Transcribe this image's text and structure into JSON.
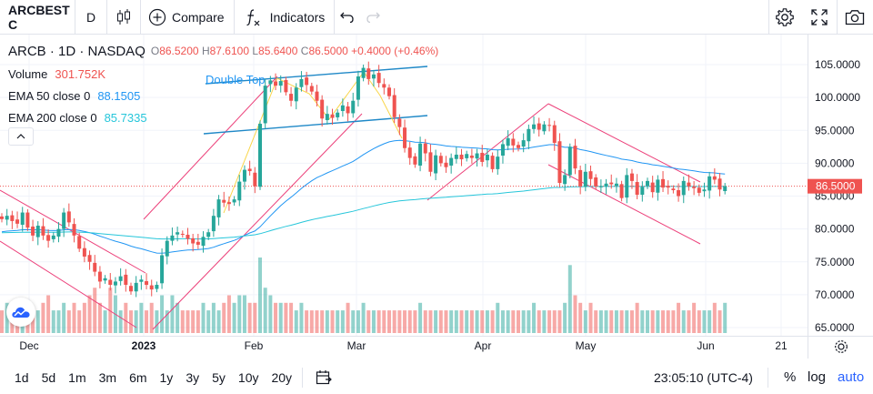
{
  "toolbar": {
    "symbol": "ARCBEST C",
    "interval": "D",
    "compare_label": "Compare",
    "indicators_label": "Indicators",
    "icons": [
      "candles-icon",
      "compare-plus-icon",
      "indicators-fx-icon",
      "undo-icon",
      "redo-icon",
      "settings-gear-icon",
      "fullscreen-icon",
      "camera-icon"
    ]
  },
  "legend": {
    "title": "ARCB · 1D · NASDAQ",
    "open_label": "O",
    "open": "86.5200",
    "high_label": "H",
    "high": "87.6100",
    "low_label": "L",
    "low": "85.6400",
    "close_label": "C",
    "close": "86.5000",
    "change": "+0.4000 (+0.46%)",
    "volume_label": "Volume",
    "volume": "301.752K",
    "ema50_label": "EMA 50 close 0",
    "ema50": "88.1505",
    "ema200_label": "EMA 200 close 0",
    "ema200": "85.7335",
    "colors": {
      "down": "#ef5350",
      "up": "#26a69a",
      "ema50": "#2196f3",
      "ema200": "#26c6da"
    }
  },
  "chart_data": {
    "type": "candlestick",
    "symbol": "ARCB",
    "interval": "1D",
    "exchange": "NASDAQ",
    "x_ticks": [
      "Dec",
      "2023",
      "Feb",
      "Mar",
      "Apr",
      "May",
      "Jun",
      "21"
    ],
    "y_ticks": [
      "105.0000",
      "100.0000",
      "95.0000",
      "90.0000",
      "85.0000",
      "80.0000",
      "75.0000",
      "70.0000",
      "65.0000"
    ],
    "ylim": [
      63.5,
      108
    ],
    "last_price": "86.5000",
    "annotation": "Double Top",
    "closes": [
      81.5,
      82,
      81.2,
      80.8,
      82.5,
      80.2,
      79,
      80.5,
      79,
      78.2,
      79,
      80,
      82.5,
      81,
      79,
      77,
      75.8,
      75,
      73.5,
      72,
      72.5,
      71.5,
      72,
      72.8,
      71.5,
      70.5,
      71.8,
      72.3,
      71.5,
      70.8,
      71.5,
      76,
      78.2,
      79,
      79.5,
      79.2,
      78.5,
      77.8,
      77.6,
      78.8,
      79.5,
      82,
      84.5,
      84,
      83.8,
      84.5,
      87.2,
      89,
      88.8,
      86.5,
      96,
      101.8,
      102.6,
      101.8,
      102.5,
      100.8,
      99.5,
      101.5,
      102.8,
      101.9,
      100.9,
      99.5,
      96.8,
      97.5,
      96.9,
      97.7,
      98.8,
      97.6,
      99.5,
      103.2,
      104.5,
      102.8,
      103.5,
      102.2,
      101.5,
      100.2,
      97,
      95.5,
      92.3,
      90.8,
      89.8,
      93,
      91.5,
      88.7,
      91.2,
      90,
      89.4,
      90.8,
      91.3,
      90.6,
      91.4,
      90.8,
      91.5,
      90.2,
      91.3,
      89.1,
      91,
      92.9,
      93.8,
      92.7,
      92.3,
      93.5,
      95.2,
      95.9,
      95.1,
      95.9,
      95.7,
      93.1,
      87,
      88.2,
      92.5,
      89.2,
      86.5,
      88.7,
      87.6,
      86.5,
      86.5,
      86.9,
      86.8,
      86.9,
      84.7,
      88.2,
      87.3,
      85.2,
      86.4,
      87.3,
      85.6,
      87.5,
      86.3,
      86.3,
      85.9,
      85,
      87.3,
      86.5,
      86.2,
      85.5,
      86,
      88,
      87.5,
      86,
      86.5
    ],
    "volume_rel": [
      0.3,
      0.4,
      0.3,
      0.3,
      0.4,
      0.3,
      0.3,
      0.3,
      0.4,
      0.5,
      0.3,
      0.3,
      0.4,
      0.3,
      0.4,
      0.3,
      0.4,
      0.5,
      0.6,
      0.4,
      0.3,
      0.6,
      0.5,
      0.3,
      0.4,
      0.3,
      0.3,
      0.4,
      0.3,
      0.4,
      0.3,
      0.5,
      0.3,
      0.5,
      0.4,
      0.3,
      0.3,
      0.3,
      0.3,
      0.4,
      0.3,
      0.4,
      0.3,
      0.4,
      0.5,
      0.4,
      0.5,
      0.5,
      0.4,
      0.4,
      1.0,
      0.6,
      0.5,
      0.4,
      0.4,
      0.4,
      0.4,
      0.3,
      0.4,
      0.3,
      0.3,
      0.3,
      0.3,
      0.3,
      0.3,
      0.3,
      0.3,
      0.4,
      0.3,
      0.3,
      0.4,
      0.3,
      0.3,
      0.3,
      0.3,
      0.3,
      0.3,
      0.3,
      0.3,
      0.3,
      0.3,
      0.4,
      0.3,
      0.3,
      0.3,
      0.3,
      0.3,
      0.3,
      0.3,
      0.3,
      0.3,
      0.3,
      0.3,
      0.3,
      0.3,
      0.3,
      0.4,
      0.3,
      0.3,
      0.3,
      0.3,
      0.3,
      0.3,
      0.4,
      0.3,
      0.3,
      0.3,
      0.3,
      0.3,
      0.4,
      0.9,
      0.5,
      0.4,
      0.3,
      0.4,
      0.3,
      0.3,
      0.3,
      0.3,
      0.3,
      0.3,
      0.3,
      0.3,
      0.4,
      0.3,
      0.3,
      0.3,
      0.3,
      0.3,
      0.3,
      0.3,
      0.4,
      0.3,
      0.3,
      0.4,
      0.3,
      0.3,
      0.3,
      0.4,
      0.3,
      0.4,
      0.3,
      0.4
    ],
    "grid": true
  },
  "bottom": {
    "ranges": [
      "1d",
      "5d",
      "1m",
      "3m",
      "6m",
      "1y",
      "3y",
      "5y",
      "10y",
      "20y"
    ],
    "time": "23:05:10 (UTC-4)",
    "percent_label": "%",
    "log_label": "log",
    "auto_label": "auto"
  }
}
